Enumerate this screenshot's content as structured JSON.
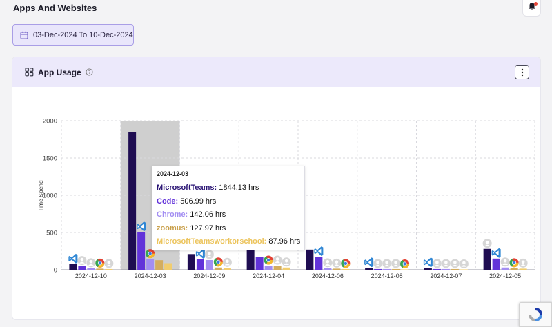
{
  "page": {
    "title": "Apps And Websites"
  },
  "date_range": {
    "label": "03-Dec-2024 To 10-Dec-2024"
  },
  "card": {
    "title": "App Usage"
  },
  "colors": [
    "#1f0d52",
    "#6233d9",
    "#a38ef2",
    "#d4ad5e",
    "#f1cd6e"
  ],
  "chart_data": {
    "type": "bar",
    "ylabel": "Time Spend",
    "ylim": [
      0,
      2000
    ],
    "yticks": [
      "0",
      "500",
      "1000",
      "1500",
      "2000"
    ],
    "categories": [
      "2024-12-10",
      "2024-12-03",
      "2024-12-09",
      "2024-12-04",
      "2024-12-06",
      "2024-12-08",
      "2024-12-07",
      "2024-12-05"
    ],
    "series": [
      {
        "values": [
          75,
          1844.13,
          210,
          300,
          270,
          25,
          25,
          280
        ]
      },
      {
        "values": [
          50,
          506.99,
          140,
          175,
          175,
          10,
          10,
          150
        ]
      },
      {
        "values": [
          20,
          142.06,
          130,
          55,
          20,
          10,
          10,
          30
        ]
      },
      {
        "values": [
          15,
          127.97,
          30,
          55,
          15,
          10,
          10,
          20
        ]
      },
      {
        "values": [
          10,
          87.96,
          25,
          30,
          10,
          5,
          5,
          15
        ]
      }
    ],
    "icons": [
      [
        "vscode-icon",
        "avatar-icon",
        "avatar-icon",
        "chrome-icon",
        "avatar-icon"
      ],
      [
        "none",
        "vscode-icon",
        "chrome-icon",
        "none",
        "none"
      ],
      [
        "none",
        "vscode-icon",
        "avatar-icon",
        "chrome-icon",
        "avatar-icon"
      ],
      [
        "none",
        "none",
        "chrome-icon",
        "avatar-icon",
        "avatar-icon"
      ],
      [
        "none",
        "vscode-icon",
        "avatar-icon",
        "avatar-icon",
        "chrome-icon"
      ],
      [
        "vscode-icon",
        "avatar-icon",
        "avatar-icon",
        "avatar-icon",
        "chrome-icon"
      ],
      [
        "vscode-icon",
        "avatar-icon",
        "avatar-icon",
        "avatar-icon",
        "avatar-icon"
      ],
      [
        "avatar-icon",
        "vscode-icon",
        "avatar-icon",
        "chrome-icon",
        "avatar-icon"
      ]
    ],
    "highlight_index": 1,
    "tooltip": {
      "date": "2024-12-03",
      "rows": [
        {
          "name": "MicrosoftTeams:",
          "value": " 1844.13 hrs",
          "color": "#2a1474"
        },
        {
          "name": "Code:",
          "value": " 506.99 hrs",
          "color": "#6233d9"
        },
        {
          "name": "Chrome:",
          "value": " 142.06 hrs",
          "color": "#a38ef2"
        },
        {
          "name": "zoomus:",
          "value": " 127.97 hrs",
          "color": "#c9a04b"
        },
        {
          "name": "MicrosoftTeamsworkorschool:",
          "value": " 87.96 hrs",
          "color": "#ecc45c"
        }
      ]
    }
  }
}
